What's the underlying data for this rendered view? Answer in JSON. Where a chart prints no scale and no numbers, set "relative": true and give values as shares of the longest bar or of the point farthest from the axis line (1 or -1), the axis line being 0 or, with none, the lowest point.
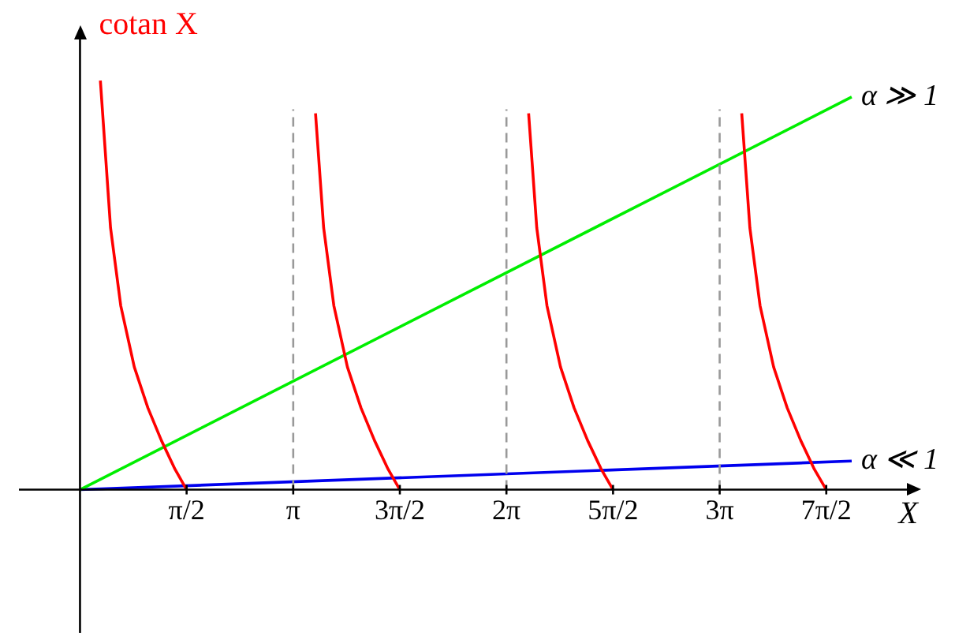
{
  "chart_data": {
    "type": "line",
    "relative": true,
    "ylabel": "cotan X",
    "xlabel": "X",
    "xlim": [
      -0.9,
      12.3
    ],
    "xticks": [
      {
        "value": 1.5708,
        "label": "π/2"
      },
      {
        "value": 3.1416,
        "label": "π"
      },
      {
        "value": 4.7124,
        "label": "3π/2"
      },
      {
        "value": 6.2832,
        "label": "2π"
      },
      {
        "value": 7.854,
        "label": "5π/2"
      },
      {
        "value": 9.4248,
        "label": "3π"
      },
      {
        "value": 10.9956,
        "label": "7π/2"
      }
    ],
    "tick_labels": "x",
    "grid": false,
    "legend": false,
    "marker": "none",
    "ref_lines": [
      {
        "axis": "x",
        "value": 3.1416,
        "color": "#999999",
        "line_style": "dashed"
      },
      {
        "axis": "x",
        "value": 6.2832,
        "color": "#999999",
        "line_style": "dashed"
      },
      {
        "axis": "x",
        "value": 9.4248,
        "color": "#999999",
        "line_style": "dashed"
      }
    ],
    "series": [
      {
        "color": "#ff0000",
        "x": [
          0.3,
          0.45,
          0.6,
          0.8,
          1.0,
          1.2,
          1.4,
          1.5708
        ],
        "values": [
          1,
          0.64,
          0.45,
          0.3,
          0.2,
          0.12,
          0.05,
          0
        ]
      },
      {
        "color": "#ff0000",
        "x": [
          3.47,
          3.59,
          3.74,
          3.94,
          4.14,
          4.34,
          4.54,
          4.7124
        ],
        "values": [
          0.92,
          0.64,
          0.45,
          0.3,
          0.2,
          0.12,
          0.05,
          0
        ]
      },
      {
        "color": "#ff0000",
        "x": [
          6.61,
          6.73,
          6.88,
          7.08,
          7.28,
          7.48,
          7.68,
          7.854
        ],
        "values": [
          0.92,
          0.64,
          0.45,
          0.3,
          0.2,
          0.12,
          0.05,
          0
        ]
      },
      {
        "color": "#ff0000",
        "x": [
          9.75,
          9.87,
          10.02,
          10.22,
          10.42,
          10.62,
          10.82,
          10.9956
        ],
        "values": [
          0.92,
          0.64,
          0.45,
          0.3,
          0.2,
          0.12,
          0.05,
          0
        ]
      },
      {
        "name": "α ≫ 1",
        "color": "#00ee00",
        "x": [
          0,
          11.37
        ],
        "values": [
          0,
          0.96
        ]
      },
      {
        "name": "α ≪ 1",
        "color": "#0000ee",
        "x": [
          0,
          11.37
        ],
        "values": [
          0,
          0.07
        ]
      }
    ]
  }
}
